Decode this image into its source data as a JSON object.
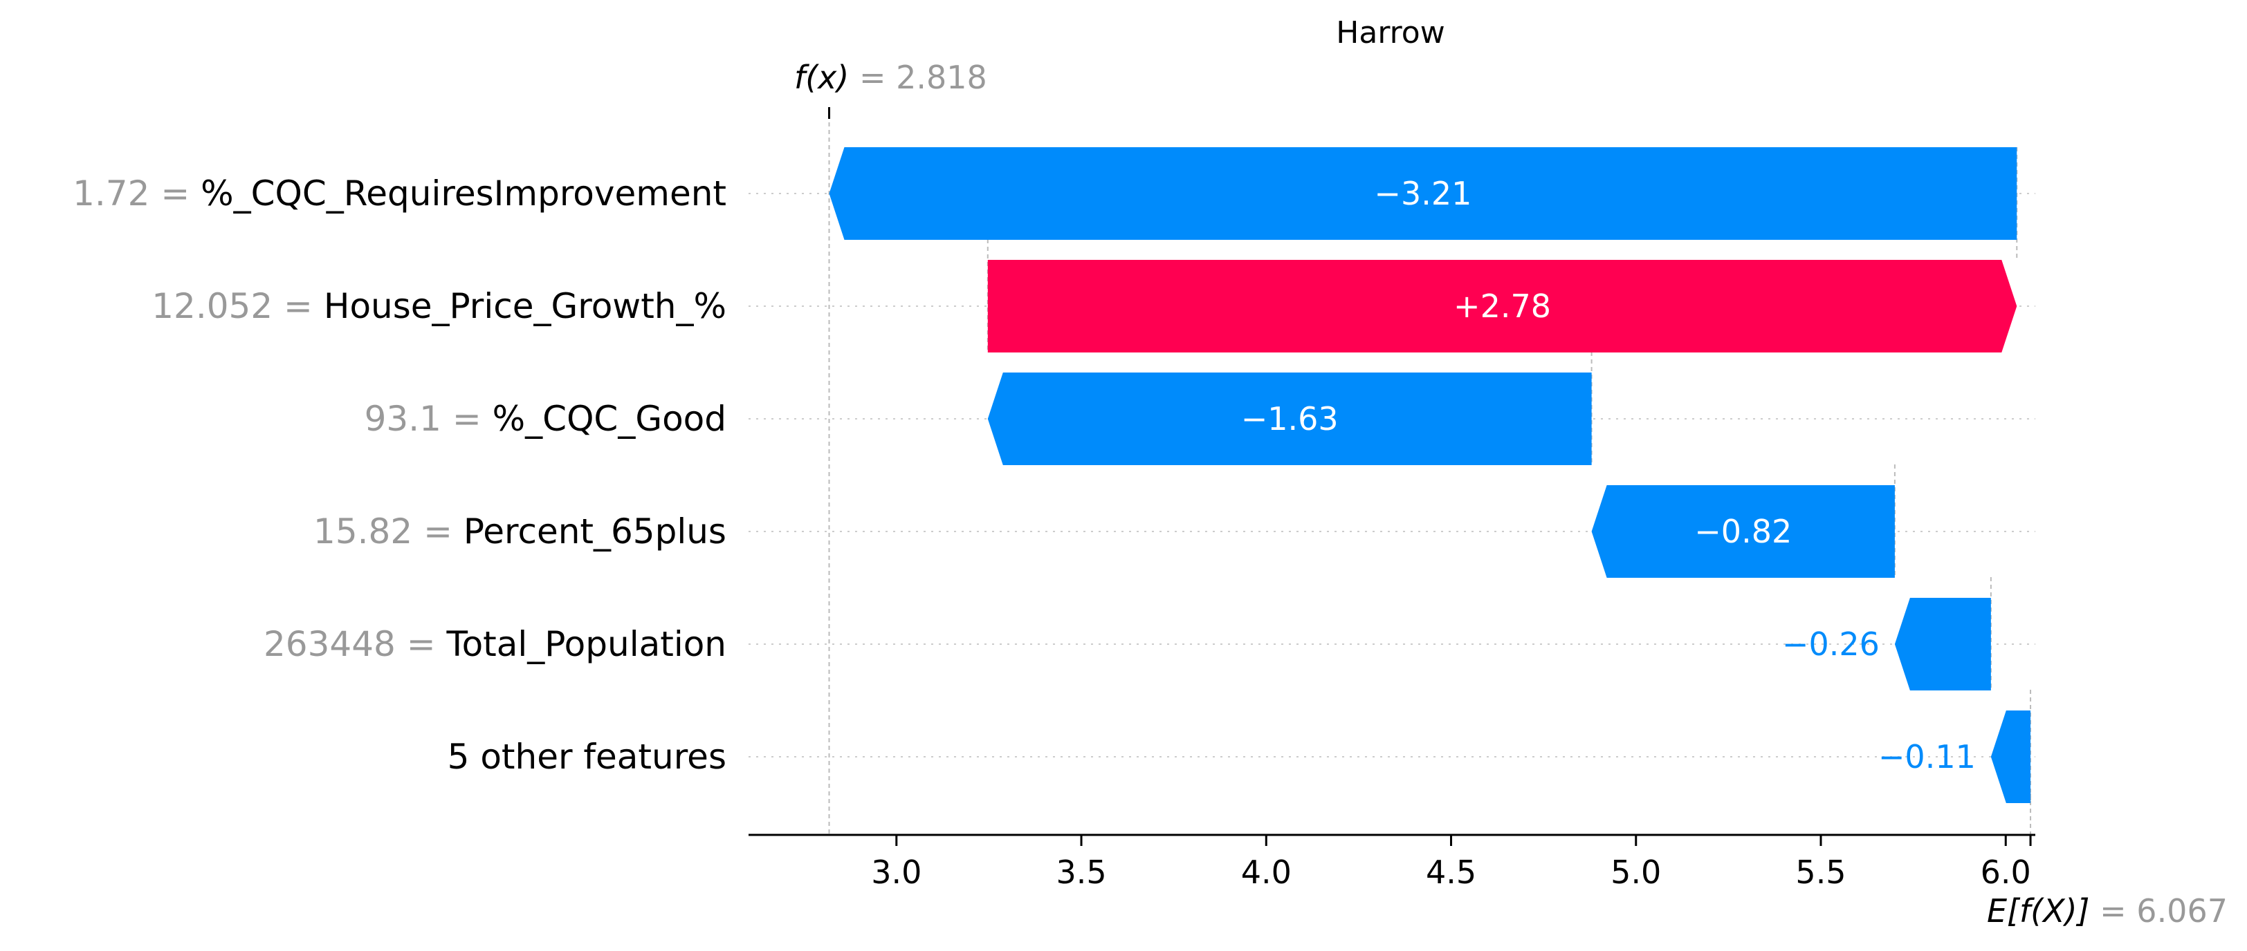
{
  "chart_data": {
    "type": "waterfall",
    "title": "Harrow",
    "fx_label": "f(x)",
    "fx_value": "2.818",
    "ex_label": "E[f(X)]",
    "ex_value": "6.067",
    "base_value": 6.067,
    "output_value": 2.818,
    "xlim": [
      2.6,
      6.08
    ],
    "xticks": [
      3.0,
      3.5,
      4.0,
      4.5,
      5.0,
      5.5,
      6.0
    ],
    "xtick_labels": [
      "3.0",
      "3.5",
      "4.0",
      "4.5",
      "5.0",
      "5.5",
      "6.0"
    ],
    "grid": false,
    "colors": {
      "positive": "#ff0051",
      "negative": "#008bfb",
      "muted": "#999999"
    },
    "features": [
      {
        "value": "1.72",
        "name": "%_CQC_RequiresImprovement",
        "contribution": -3.21,
        "contribution_label": "−3.21",
        "start": 6.03,
        "end": 2.818
      },
      {
        "value": "12.052",
        "name": "House_Price_Growth_%",
        "contribution": 2.78,
        "contribution_label": "+2.78",
        "start": 3.247,
        "end": 6.03
      },
      {
        "value": "93.1",
        "name": "%_CQC_Good",
        "contribution": -1.63,
        "contribution_label": "−1.63",
        "start": 4.88,
        "end": 3.247
      },
      {
        "value": "15.82",
        "name": "Percent_65plus",
        "contribution": -0.82,
        "contribution_label": "−0.82",
        "start": 5.7,
        "end": 4.88
      },
      {
        "value": "263448",
        "name": "Total_Population",
        "contribution": -0.26,
        "contribution_label": "−0.26",
        "start": 5.96,
        "end": 5.7
      },
      {
        "value": "",
        "name": "5 other features",
        "contribution": -0.11,
        "contribution_label": "−0.11",
        "start": 6.067,
        "end": 5.96
      }
    ]
  }
}
